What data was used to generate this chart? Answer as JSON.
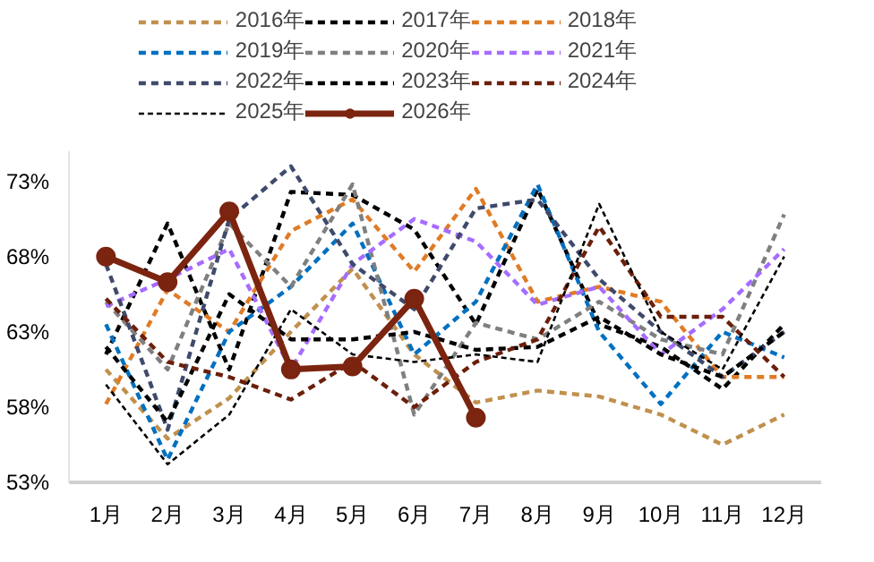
{
  "chart_data": {
    "type": "line",
    "categories": [
      "1月",
      "2月",
      "3月",
      "4月",
      "5月",
      "6月",
      "7月",
      "8月",
      "9月",
      "10月",
      "11月",
      "12月"
    ],
    "ylim": [
      53,
      75
    ],
    "yticks": [
      {
        "value": 53,
        "label": "53%"
      },
      {
        "value": 58,
        "label": "58%"
      },
      {
        "value": 63,
        "label": "63%"
      },
      {
        "value": 68,
        "label": "68%"
      },
      {
        "value": 73,
        "label": "73%"
      }
    ],
    "grid": false,
    "legend": "top",
    "line_style": "dashed",
    "marker": "none",
    "series": [
      {
        "name": "2016年",
        "color": "#c0904d",
        "values": [
          60.5,
          55.9,
          58.6,
          63.0,
          67.2,
          61.5,
          58.3,
          59.1,
          58.7,
          57.5,
          55.5,
          57.5
        ]
      },
      {
        "name": "2017年",
        "color": "#000000",
        "values": [
          61.5,
          70.2,
          60.5,
          72.3,
          72.1,
          69.8,
          63.5,
          72.5,
          63.5,
          62.0,
          59.2,
          63.5
        ]
      },
      {
        "name": "2018年",
        "color": "#e07b25",
        "values": [
          58.2,
          65.8,
          63.0,
          69.7,
          71.8,
          67.0,
          72.5,
          65.0,
          66.0,
          65.0,
          60.0,
          60.0
        ]
      },
      {
        "name": "2019年",
        "color": "#0070c0",
        "values": [
          63.5,
          54.5,
          63.0,
          66.0,
          70.2,
          61.5,
          65.0,
          72.8,
          63.0,
          58.2,
          63.0,
          61.3
        ]
      },
      {
        "name": "2020年",
        "color": "#7f7f7f",
        "values": [
          65.0,
          60.5,
          70.2,
          66.0,
          72.8,
          57.5,
          63.6,
          62.5,
          65.0,
          62.5,
          61.5,
          70.8
        ]
      },
      {
        "name": "2021年",
        "color": "#a66cff",
        "values": [
          64.7,
          66.5,
          68.5,
          60.5,
          67.5,
          70.5,
          69.0,
          64.8,
          66.0,
          61.5,
          64.5,
          68.5
        ]
      },
      {
        "name": "2022年",
        "color": "#3f4a6b",
        "values": [
          67.5,
          56.5,
          70.5,
          74.0,
          67.5,
          64.5,
          71.2,
          71.8,
          66.5,
          63.0,
          60.0,
          63.0
        ]
      },
      {
        "name": "2023年",
        "color": "#000000",
        "values": [
          62.0,
          57.0,
          65.5,
          62.5,
          62.5,
          63.0,
          61.8,
          62.0,
          64.0,
          61.5,
          60.0,
          63.0
        ]
      },
      {
        "name": "2024年",
        "color": "#6b1f0a",
        "values": [
          65.2,
          61.0,
          60.0,
          58.5,
          61.0,
          58.0,
          61.0,
          62.5,
          70.0,
          64.0,
          64.0,
          60.0
        ]
      },
      {
        "name": "2025年",
        "color": "#000000",
        "line_style": "dotted",
        "values": [
          59.5,
          54.2,
          57.5,
          64.5,
          61.5,
          61.0,
          61.5,
          61.0,
          71.5,
          63.0,
          60.5,
          68.0
        ]
      },
      {
        "name": "2026年",
        "color": "#7b2410",
        "line_style": "solid",
        "marker": "circle",
        "values": [
          68.0,
          66.3,
          71.0,
          60.5,
          60.7,
          65.2,
          57.3,
          null,
          null,
          null,
          null,
          null
        ]
      }
    ]
  }
}
